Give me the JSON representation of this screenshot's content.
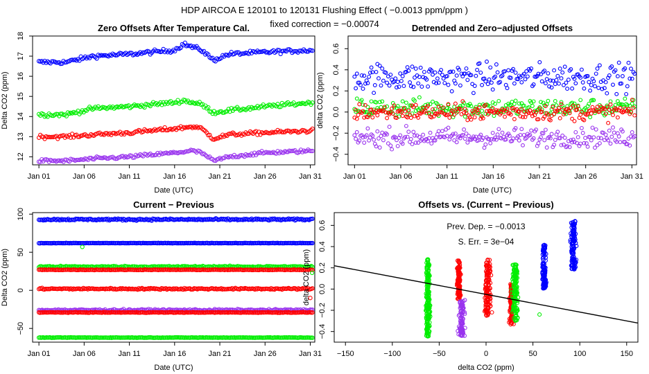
{
  "figure": {
    "title_line1": "HDP   AIRCOA E   120101 to 120131   Flushing Effect ( −0.0013 ppm/ppm )",
    "title_line2": "fixed correction = −0.00074"
  },
  "colors": {
    "blue": "#0000ff",
    "green": "#00ee00",
    "red": "#ff0000",
    "purple": "#9933ee",
    "black": "#000000"
  },
  "chart_data": [
    {
      "id": "p1",
      "type": "scatter",
      "title": "Zero Offsets After Temperature Cal.",
      "xlabel": "Date (UTC)",
      "ylabel": "Delta CO2 (ppm)",
      "x_ticks": [
        "Jan 01",
        "Jan 06",
        "Jan 11",
        "Jan 16",
        "Jan 21",
        "Jan 26",
        "Jan 31"
      ],
      "xlim_days": [
        0.3,
        31.5
      ],
      "ylim": [
        11.6,
        18.0
      ],
      "y_ticks": [
        12,
        13,
        14,
        15,
        16,
        17,
        18
      ],
      "series": [
        {
          "name": "blue",
          "color": "#0000ff",
          "baseline": [
            [
              1,
              16.7
            ],
            [
              4,
              16.7
            ],
            [
              7,
              17.0
            ],
            [
              11,
              17.1
            ],
            [
              16,
              17.3
            ],
            [
              17,
              17.6
            ],
            [
              19,
              17.3
            ],
            [
              20.3,
              16.8
            ],
            [
              22,
              17.1
            ],
            [
              26,
              17.2
            ],
            [
              31.3,
              17.3
            ]
          ],
          "noise": 0.1
        },
        {
          "name": "green",
          "color": "#00ee00",
          "baseline": [
            [
              1,
              14.1
            ],
            [
              4,
              14.1
            ],
            [
              7,
              14.4
            ],
            [
              11,
              14.5
            ],
            [
              16,
              14.7
            ],
            [
              17,
              14.8
            ],
            [
              19,
              14.6
            ],
            [
              20.3,
              14.2
            ],
            [
              22,
              14.3
            ],
            [
              26,
              14.5
            ],
            [
              31.3,
              14.7
            ]
          ],
          "noise": 0.1
        },
        {
          "name": "red",
          "color": "#ff0000",
          "baseline": [
            [
              1,
              13.0
            ],
            [
              4,
              13.0
            ],
            [
              7,
              13.1
            ],
            [
              11,
              13.2
            ],
            [
              16,
              13.4
            ],
            [
              18,
              13.5
            ],
            [
              19,
              13.4
            ],
            [
              20.3,
              12.9
            ],
            [
              22,
              13.1
            ],
            [
              26,
              13.2
            ],
            [
              31.3,
              13.3
            ]
          ],
          "noise": 0.09
        },
        {
          "name": "purple",
          "color": "#9933ee",
          "baseline": [
            [
              1,
              11.8
            ],
            [
              4,
              11.8
            ],
            [
              7,
              11.9
            ],
            [
              11,
              12.0
            ],
            [
              16,
              12.2
            ],
            [
              18,
              12.3
            ],
            [
              19,
              12.2
            ],
            [
              20.3,
              11.8
            ],
            [
              22,
              12.0
            ],
            [
              26,
              12.2
            ],
            [
              31.3,
              12.3
            ]
          ],
          "noise": 0.08
        }
      ]
    },
    {
      "id": "p2",
      "type": "scatter",
      "title": "Detrended and Zero−adjusted Offsets",
      "xlabel": "Date (UTC)",
      "ylabel": "delta CO2 (ppm)",
      "x_ticks": [
        "Jan 01",
        "Jan 06",
        "Jan 11",
        "Jan 16",
        "Jan 21",
        "Jan 26",
        "Jan 31"
      ],
      "xlim_days": [
        0.3,
        31.5
      ],
      "ylim": [
        -0.5,
        0.72
      ],
      "y_ticks": [
        -0.4,
        -0.2,
        0.0,
        0.2,
        0.4,
        0.6
      ],
      "series": [
        {
          "name": "blue",
          "color": "#0000ff",
          "center": 0.33,
          "spread": 0.13
        },
        {
          "name": "green",
          "color": "#00ee00",
          "center": 0.04,
          "spread": 0.09
        },
        {
          "name": "red",
          "color": "#ff0000",
          "center": 0.0,
          "spread": 0.08
        },
        {
          "name": "purple",
          "color": "#9933ee",
          "center": -0.24,
          "spread": 0.09
        }
      ]
    },
    {
      "id": "p3",
      "type": "scatter",
      "title": "Current − Previous",
      "xlabel": "Date (UTC)",
      "ylabel": "Delta CO2 (ppm)",
      "x_ticks": [
        "Jan 01",
        "Jan 06",
        "Jan 11",
        "Jan 16",
        "Jan 21",
        "Jan 26",
        "Jan 31"
      ],
      "xlim_days": [
        0.3,
        31.5
      ],
      "ylim": [
        -68,
        102
      ],
      "y_ticks": [
        -50,
        0,
        50,
        100
      ],
      "series": [
        {
          "name": "blue",
          "color": "#0000ff",
          "level": 93,
          "spread": 1.2
        },
        {
          "name": "blue",
          "color": "#0000ff",
          "level": 62,
          "spread": 0.2
        },
        {
          "name": "green",
          "color": "#00ee00",
          "level": 31,
          "spread": 1.0
        },
        {
          "name": "red",
          "color": "#ff0000",
          "level": 27,
          "spread": 0.4
        },
        {
          "name": "red",
          "color": "#ff0000",
          "level": 2,
          "spread": 1.0
        },
        {
          "name": "purple",
          "color": "#9933ee",
          "level": -26,
          "spread": 1.2
        },
        {
          "name": "red",
          "color": "#ff0000",
          "level": -29,
          "spread": 0.4
        },
        {
          "name": "green",
          "color": "#00ee00",
          "level": -62,
          "spread": 0.3
        }
      ]
    },
    {
      "id": "p4",
      "type": "scatter",
      "title": "Offsets vs. (Current − Previous)",
      "xlabel": "delta CO2 (ppm)",
      "ylabel": "delta CO2 (ppm)",
      "xlim": [
        -162,
        162
      ],
      "ylim": [
        -0.5,
        0.72
      ],
      "x_ticks": [
        -150,
        -100,
        -50,
        0,
        50,
        100,
        150
      ],
      "y_ticks": [
        -0.4,
        -0.2,
        0.0,
        0.2,
        0.4,
        0.6
      ],
      "annotation_dep": "Prev. Dep. =  −0.0013",
      "annotation_err": "S. Err. =  3e−04",
      "fit_line": {
        "x1": -162,
        "y1": 0.22,
        "x2": 162,
        "y2": -0.32
      },
      "clusters": [
        {
          "color": "#00ee00",
          "x": -62,
          "y_range": [
            -0.45,
            0.28
          ],
          "width": 2
        },
        {
          "color": "#ff0000",
          "x": -29,
          "y_range": [
            -0.1,
            0.28
          ],
          "width": 2
        },
        {
          "color": "#9933ee",
          "x": -26,
          "y_range": [
            -0.45,
            -0.1
          ],
          "width": 3
        },
        {
          "color": "#ff0000",
          "x": 2,
          "y_range": [
            -0.25,
            0.28
          ],
          "width": 3
        },
        {
          "color": "#ff0000",
          "x": 27,
          "y_range": [
            -0.34,
            0.05
          ],
          "width": 2
        },
        {
          "color": "#00ee00",
          "x": 31,
          "y_range": [
            -0.3,
            0.24
          ],
          "width": 3
        },
        {
          "color": "#0000ff",
          "x": 62,
          "y_range": [
            0.0,
            0.42
          ],
          "width": 2
        },
        {
          "color": "#0000ff",
          "x": 93,
          "y_range": [
            0.18,
            0.65
          ],
          "width": 3
        }
      ],
      "outliers": [
        {
          "color": "#00ee00",
          "x": 57,
          "y": -0.24
        }
      ]
    }
  ]
}
